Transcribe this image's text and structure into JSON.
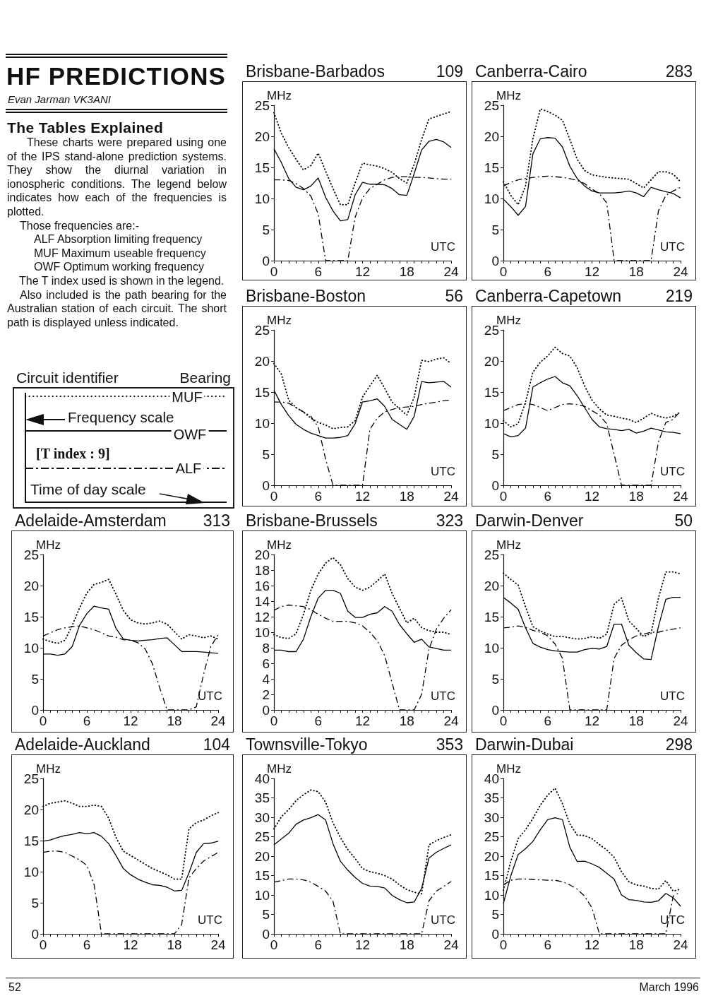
{
  "chart_data": [
    {
      "type": "other",
      "title": "HF PREDICTIONS",
      "subtitle": "Evan Jarman VK3ANI",
      "annotations": [
        "The Tables Explained",
        "These charts were prepared using one of the IPS stand-alone prediction systems. They show the diurnal variation in ionospheric conditions. The legend below indicates how each of the frequencies is plotted.",
        "Those frequencies are:-",
        "ALF Absorption limiting frequency",
        "MUF Maximum useable frequency",
        "OWF Optimum working frequency",
        "The T index used is shown in the legend.",
        "Also included is the path bearing for the Australian station of each circuit. The short path is displayed unless indicated."
      ]
    },
    {
      "type": "line",
      "title": "Brisbane-Barbados",
      "subtitle": "109",
      "xlabel": "UTC",
      "ylabel": "MHz",
      "x": [
        0,
        1,
        2,
        3,
        4,
        5,
        6,
        7,
        8,
        9,
        10,
        11,
        12,
        13,
        14,
        15,
        16,
        17,
        18,
        19,
        20,
        21,
        22,
        23,
        24
      ],
      "xlim": [
        0,
        24
      ],
      "xticks": [
        0,
        {
          "value": 1,
          "label": null
        },
        {
          "value": 2,
          "label": null
        },
        {
          "value": 3,
          "label": null
        },
        {
          "value": 4,
          "label": null
        },
        {
          "value": 5,
          "label": null
        },
        6,
        {
          "value": 7,
          "label": null
        },
        {
          "value": 8,
          "label": null
        },
        {
          "value": 9,
          "label": null
        },
        {
          "value": 10,
          "label": null
        },
        {
          "value": 11,
          "label": null
        },
        12,
        {
          "value": 13,
          "label": null
        },
        {
          "value": 14,
          "label": null
        },
        {
          "value": 15,
          "label": null
        },
        {
          "value": 16,
          "label": null
        },
        {
          "value": 17,
          "label": null
        },
        18,
        {
          "value": 19,
          "label": null
        },
        {
          "value": 20,
          "label": null
        },
        {
          "value": 21,
          "label": null
        },
        {
          "value": 22,
          "label": null
        },
        {
          "value": 23,
          "label": null
        },
        24
      ],
      "ylim": [
        0,
        25
      ],
      "yticks": [
        0,
        5,
        10,
        15,
        20,
        25
      ],
      "marker": "none",
      "series": [
        {
          "color": "#000000",
          "line_style": "dotted",
          "values": [
            23.8,
            20.5,
            18.2,
            16.3,
            14.6,
            15.3,
            17.3,
            14.4,
            11.6,
            9,
            9,
            12.5,
            15.7,
            15.4,
            15.2,
            14.8,
            14.2,
            13.2,
            12.5,
            15.5,
            19.5,
            22.8,
            23.2,
            23.6,
            24
          ]
        },
        {
          "color": "#000000",
          "line_style": "solid",
          "values": [
            18,
            15.8,
            13.2,
            11.8,
            11.4,
            12,
            13.3,
            10.2,
            8,
            6.4,
            6.6,
            10.6,
            12.6,
            12.3,
            12.3,
            12.2,
            11.6,
            10.6,
            10.5,
            14,
            17.8,
            19.2,
            19.5,
            19.1,
            18.2
          ]
        },
        {
          "color": "#000000",
          "line_style": "dashed",
          "values": [
            13,
            13,
            12.9,
            12.4,
            11.6,
            10.4,
            7.5,
            0,
            0,
            0,
            0,
            7,
            10.1,
            11.6,
            12.3,
            13,
            13.4,
            13.5,
            13.5,
            13.4,
            13.4,
            13.3,
            13.2,
            13.1,
            13.1
          ]
        }
      ]
    },
    {
      "type": "line",
      "title": "Canberra-Cairo",
      "subtitle": "283",
      "xlabel": "UTC",
      "ylabel": "MHz",
      "x": [
        0,
        1,
        2,
        3,
        4,
        5,
        6,
        7,
        8,
        9,
        10,
        11,
        12,
        13,
        14,
        15,
        16,
        17,
        18,
        19,
        20,
        21,
        22,
        23,
        24
      ],
      "xlim": [
        0,
        24
      ],
      "xticks": [
        0,
        {
          "value": 1,
          "label": null
        },
        {
          "value": 2,
          "label": null
        },
        {
          "value": 3,
          "label": null
        },
        {
          "value": 4,
          "label": null
        },
        {
          "value": 5,
          "label": null
        },
        6,
        {
          "value": 7,
          "label": null
        },
        {
          "value": 8,
          "label": null
        },
        {
          "value": 9,
          "label": null
        },
        {
          "value": 10,
          "label": null
        },
        {
          "value": 11,
          "label": null
        },
        12,
        {
          "value": 13,
          "label": null
        },
        {
          "value": 14,
          "label": null
        },
        {
          "value": 15,
          "label": null
        },
        {
          "value": 16,
          "label": null
        },
        {
          "value": 17,
          "label": null
        },
        18,
        {
          "value": 19,
          "label": null
        },
        {
          "value": 20,
          "label": null
        },
        {
          "value": 21,
          "label": null
        },
        {
          "value": 22,
          "label": null
        },
        {
          "value": 23,
          "label": null
        },
        24
      ],
      "ylim": [
        0,
        25
      ],
      "yticks": [
        0,
        5,
        10,
        15,
        20,
        25
      ],
      "marker": "none",
      "series": [
        {
          "color": "#000000",
          "line_style": "dotted",
          "values": [
            12.7,
            10.5,
            9,
            12,
            19.6,
            24.4,
            24,
            23.4,
            22.6,
            19.5,
            16.3,
            14.5,
            13.8,
            13.6,
            13.4,
            13.3,
            13.2,
            13.1,
            12.4,
            11.7,
            13,
            14.3,
            14.3,
            13.9,
            12.7
          ]
        },
        {
          "color": "#000000",
          "line_style": "solid",
          "values": [
            9.9,
            8.7,
            7.3,
            8.7,
            17.2,
            19.6,
            19.8,
            19.7,
            18.3,
            15.2,
            13.2,
            12,
            11.2,
            10.9,
            10.9,
            10.9,
            11,
            11.2,
            10.9,
            10.3,
            11.8,
            11.4,
            11.1,
            10.8,
            10.1
          ]
        },
        {
          "color": "#000000",
          "line_style": "dashed",
          "values": [
            12,
            12.6,
            13,
            13.2,
            13.4,
            13.5,
            13.6,
            13.5,
            13.4,
            13.2,
            12.9,
            12.4,
            11.5,
            10.8,
            9.3,
            0,
            0,
            0,
            0,
            0,
            0,
            8,
            10.5,
            11.2,
            11.8
          ]
        }
      ]
    },
    {
      "type": "line",
      "title": "Brisbane-Boston",
      "subtitle": "56",
      "xlabel": "UTC",
      "ylabel": "MHz",
      "x": [
        0,
        1,
        2,
        3,
        4,
        5,
        6,
        7,
        8,
        9,
        10,
        11,
        12,
        13,
        14,
        15,
        16,
        17,
        18,
        19,
        20,
        21,
        22,
        23,
        24
      ],
      "xlim": [
        0,
        24
      ],
      "xticks": [
        0,
        {
          "value": 1,
          "label": null
        },
        {
          "value": 2,
          "label": null
        },
        {
          "value": 3,
          "label": null
        },
        {
          "value": 4,
          "label": null
        },
        {
          "value": 5,
          "label": null
        },
        6,
        {
          "value": 7,
          "label": null
        },
        {
          "value": 8,
          "label": null
        },
        {
          "value": 9,
          "label": null
        },
        {
          "value": 10,
          "label": null
        },
        {
          "value": 11,
          "label": null
        },
        12,
        {
          "value": 13,
          "label": null
        },
        {
          "value": 14,
          "label": null
        },
        {
          "value": 15,
          "label": null
        },
        {
          "value": 16,
          "label": null
        },
        {
          "value": 17,
          "label": null
        },
        18,
        {
          "value": 19,
          "label": null
        },
        {
          "value": 20,
          "label": null
        },
        {
          "value": 21,
          "label": null
        },
        {
          "value": 22,
          "label": null
        },
        {
          "value": 23,
          "label": null
        },
        24
      ],
      "ylim": [
        0,
        25
      ],
      "yticks": [
        0,
        5,
        10,
        15,
        20,
        25
      ],
      "marker": "none",
      "series": [
        {
          "color": "#000000",
          "line_style": "dotted",
          "values": [
            19.6,
            17.9,
            13.7,
            12.5,
            11.8,
            10.8,
            10.1,
            9.7,
            9.1,
            9.3,
            9.4,
            10.4,
            14.2,
            16,
            17.7,
            15.6,
            13.4,
            12.3,
            11.3,
            14.2,
            20.1,
            19.9,
            20.3,
            20.5,
            19.6
          ]
        },
        {
          "color": "#000000",
          "line_style": "solid",
          "values": [
            15.3,
            13,
            11.2,
            9.8,
            9,
            8.4,
            8,
            7.6,
            7.6,
            7.7,
            8,
            9.9,
            13.4,
            13.6,
            13.9,
            12.7,
            10.6,
            9.8,
            9,
            11.1,
            16.7,
            16.5,
            16.6,
            16.7,
            15.8
          ]
        },
        {
          "color": "#000000",
          "line_style": "dashed",
          "values": [
            13.4,
            13.4,
            13.2,
            12.5,
            11.8,
            11.1,
            9.4,
            4.2,
            0,
            0,
            0,
            0,
            0,
            9,
            10.8,
            11.8,
            12.2,
            12.5,
            12.6,
            12.7,
            13,
            13.2,
            13.4,
            13.6,
            13.7
          ]
        }
      ]
    },
    {
      "type": "line",
      "title": "Canberra-Capetown",
      "subtitle": "219",
      "xlabel": "UTC",
      "ylabel": "MHz",
      "x": [
        0,
        1,
        2,
        3,
        4,
        5,
        6,
        7,
        8,
        9,
        10,
        11,
        12,
        13,
        14,
        15,
        16,
        17,
        18,
        19,
        20,
        21,
        22,
        23,
        24
      ],
      "xlim": [
        0,
        24
      ],
      "xticks": [
        0,
        {
          "value": 1,
          "label": null
        },
        {
          "value": 2,
          "label": null
        },
        {
          "value": 3,
          "label": null
        },
        {
          "value": 4,
          "label": null
        },
        {
          "value": 5,
          "label": null
        },
        6,
        {
          "value": 7,
          "label": null
        },
        {
          "value": 8,
          "label": null
        },
        {
          "value": 9,
          "label": null
        },
        {
          "value": 10,
          "label": null
        },
        {
          "value": 11,
          "label": null
        },
        12,
        {
          "value": 13,
          "label": null
        },
        {
          "value": 14,
          "label": null
        },
        {
          "value": 15,
          "label": null
        },
        {
          "value": 16,
          "label": null
        },
        {
          "value": 17,
          "label": null
        },
        18,
        {
          "value": 19,
          "label": null
        },
        {
          "value": 20,
          "label": null
        },
        {
          "value": 21,
          "label": null
        },
        {
          "value": 22,
          "label": null
        },
        {
          "value": 23,
          "label": null
        },
        24
      ],
      "ylim": [
        0,
        25
      ],
      "yticks": [
        0,
        5,
        10,
        15,
        20,
        25
      ],
      "marker": "none",
      "series": [
        {
          "color": "#000000",
          "line_style": "dotted",
          "values": [
            10.4,
            9.4,
            9.9,
            13.4,
            18.2,
            19.8,
            20.8,
            22.2,
            21.2,
            20.8,
            18.9,
            16,
            13.7,
            12.3,
            11.3,
            11.1,
            10.8,
            10.6,
            10.1,
            10.8,
            11.6,
            11.1,
            10.8,
            11.1,
            11.8
          ]
        },
        {
          "color": "#000000",
          "line_style": "solid",
          "values": [
            8.3,
            7.8,
            8,
            9.2,
            15.8,
            16.5,
            17.1,
            17.5,
            16.5,
            16,
            14.4,
            12.5,
            10.6,
            9.4,
            9.1,
            9,
            8.8,
            9,
            8.4,
            8.7,
            9.2,
            8.9,
            8.6,
            8.5,
            8.3
          ]
        },
        {
          "color": "#000000",
          "line_style": "dashed",
          "values": [
            12,
            12.5,
            13,
            13.1,
            13,
            12.5,
            12,
            12.5,
            13,
            13.1,
            13,
            12.7,
            12,
            11.3,
            9.9,
            5,
            0,
            0,
            0,
            0,
            0,
            7,
            10.1,
            10.6,
            12
          ]
        }
      ]
    },
    {
      "type": "other",
      "title": "Circuit identifier",
      "subtitle": "Bearing",
      "annotations": [
        "MUF",
        "Frequency scale",
        "OWF",
        "[T index : 9]",
        "ALF",
        "Time of day scale"
      ]
    },
    {
      "type": "line",
      "title": "Adelaide-Amsterdam",
      "subtitle": "313",
      "xlabel": "UTC",
      "ylabel": "MHz",
      "x": [
        0,
        1,
        2,
        3,
        4,
        5,
        6,
        7,
        8,
        9,
        10,
        11,
        12,
        13,
        14,
        15,
        16,
        17,
        18,
        19,
        20,
        21,
        22,
        23,
        24
      ],
      "xlim": [
        0,
        24
      ],
      "xticks": [
        0,
        {
          "value": 1,
          "label": null
        },
        {
          "value": 2,
          "label": null
        },
        {
          "value": 3,
          "label": null
        },
        {
          "value": 4,
          "label": null
        },
        {
          "value": 5,
          "label": null
        },
        6,
        {
          "value": 7,
          "label": null
        },
        {
          "value": 8,
          "label": null
        },
        {
          "value": 9,
          "label": null
        },
        {
          "value": 10,
          "label": null
        },
        {
          "value": 11,
          "label": null
        },
        12,
        {
          "value": 13,
          "label": null
        },
        {
          "value": 14,
          "label": null
        },
        {
          "value": 15,
          "label": null
        },
        {
          "value": 16,
          "label": null
        },
        {
          "value": 17,
          "label": null
        },
        18,
        {
          "value": 19,
          "label": null
        },
        {
          "value": 20,
          "label": null
        },
        {
          "value": 21,
          "label": null
        },
        {
          "value": 22,
          "label": null
        },
        {
          "value": 23,
          "label": null
        },
        24
      ],
      "ylim": [
        0,
        25
      ],
      "yticks": [
        0,
        5,
        10,
        15,
        20,
        25
      ],
      "marker": "none",
      "series": [
        {
          "color": "#000000",
          "line_style": "dotted",
          "values": [
            11.4,
            11,
            10.7,
            11.2,
            13.6,
            16.4,
            18.8,
            20.2,
            20.5,
            21,
            18.6,
            16,
            14.5,
            14,
            13.8,
            14,
            14.3,
            13.8,
            12.6,
            11.4,
            12.1,
            11.9,
            11.6,
            11.9,
            11.4
          ]
        },
        {
          "color": "#000000",
          "line_style": "solid",
          "values": [
            9,
            9,
            8.8,
            9,
            10.2,
            13.6,
            15.5,
            16.7,
            16.4,
            16.2,
            13.1,
            11.4,
            11.2,
            11.1,
            11.2,
            11.3,
            11.5,
            11.6,
            10.5,
            9.4,
            9.4,
            9.4,
            9.3,
            9.2,
            9.1
          ]
        },
        {
          "color": "#000000",
          "line_style": "dashed",
          "values": [
            11.9,
            12.4,
            12.9,
            13.2,
            13.4,
            13.5,
            13.2,
            12.9,
            12.4,
            11.9,
            11.7,
            11.3,
            11.2,
            10.8,
            9.8,
            7.4,
            3.5,
            0,
            0,
            0,
            0,
            0.5,
            5.7,
            10.2,
            12.1
          ]
        }
      ]
    },
    {
      "type": "line",
      "title": "Brisbane-Brussels",
      "subtitle": "323",
      "xlabel": "UTC",
      "ylabel": "MHz",
      "x": [
        0,
        1,
        2,
        3,
        4,
        5,
        6,
        7,
        8,
        9,
        10,
        11,
        12,
        13,
        14,
        15,
        16,
        17,
        18,
        19,
        20,
        21,
        22,
        23,
        24
      ],
      "xlim": [
        0,
        24
      ],
      "xticks": [
        0,
        {
          "value": 1,
          "label": null
        },
        {
          "value": 2,
          "label": null
        },
        {
          "value": 3,
          "label": null
        },
        {
          "value": 4,
          "label": null
        },
        {
          "value": 5,
          "label": null
        },
        6,
        {
          "value": 7,
          "label": null
        },
        {
          "value": 8,
          "label": null
        },
        {
          "value": 9,
          "label": null
        },
        {
          "value": 10,
          "label": null
        },
        {
          "value": 11,
          "label": null
        },
        12,
        {
          "value": 13,
          "label": null
        },
        {
          "value": 14,
          "label": null
        },
        {
          "value": 15,
          "label": null
        },
        {
          "value": 16,
          "label": null
        },
        {
          "value": 17,
          "label": null
        },
        18,
        {
          "value": 19,
          "label": null
        },
        {
          "value": 20,
          "label": null
        },
        {
          "value": 21,
          "label": null
        },
        {
          "value": 22,
          "label": null
        },
        {
          "value": 23,
          "label": null
        },
        24
      ],
      "ylim": [
        0,
        20
      ],
      "yticks": [
        0,
        2,
        4,
        6,
        8,
        10,
        12,
        14,
        16,
        18,
        20
      ],
      "marker": "none",
      "series": [
        {
          "color": "#000000",
          "line_style": "dotted",
          "values": [
            9.7,
            9.3,
            9.2,
            9.8,
            12.3,
            15.4,
            17.5,
            18.9,
            19.6,
            18.7,
            16.9,
            15.8,
            15.4,
            15.8,
            16.6,
            17.5,
            15,
            13.1,
            11.2,
            11.8,
            10.6,
            10.2,
            10,
            10,
            9.7
          ]
        },
        {
          "color": "#000000",
          "line_style": "solid",
          "values": [
            7.7,
            7.7,
            7.5,
            7.5,
            9.1,
            12,
            14.4,
            15.4,
            15.4,
            15,
            12.7,
            11.9,
            11.9,
            12.3,
            12.5,
            13.3,
            12.7,
            11,
            9.8,
            8.7,
            9.1,
            8.1,
            7.9,
            7.7,
            7.7
          ]
        },
        {
          "color": "#000000",
          "line_style": "dashed",
          "values": [
            12.8,
            13.3,
            13.5,
            13.4,
            13.3,
            12.9,
            12.3,
            11.8,
            11.4,
            11.4,
            11.4,
            11.2,
            10.8,
            10,
            8.9,
            7,
            3.5,
            0,
            0,
            0,
            2,
            7.8,
            10.4,
            11.8,
            12.9
          ]
        }
      ]
    },
    {
      "type": "line",
      "title": "Darwin-Denver",
      "subtitle": "50",
      "xlabel": "UTC",
      "ylabel": "MHz",
      "x": [
        0,
        1,
        2,
        3,
        4,
        5,
        6,
        7,
        8,
        9,
        10,
        11,
        12,
        13,
        14,
        15,
        16,
        17,
        18,
        19,
        20,
        21,
        22,
        23,
        24
      ],
      "xlim": [
        0,
        24
      ],
      "xticks": [
        0,
        {
          "value": 1,
          "label": null
        },
        {
          "value": 2,
          "label": null
        },
        {
          "value": 3,
          "label": null
        },
        {
          "value": 4,
          "label": null
        },
        {
          "value": 5,
          "label": null
        },
        6,
        {
          "value": 7,
          "label": null
        },
        {
          "value": 8,
          "label": null
        },
        {
          "value": 9,
          "label": null
        },
        {
          "value": 10,
          "label": null
        },
        {
          "value": 11,
          "label": null
        },
        12,
        {
          "value": 13,
          "label": null
        },
        {
          "value": 14,
          "label": null
        },
        {
          "value": 15,
          "label": null
        },
        {
          "value": 16,
          "label": null
        },
        {
          "value": 17,
          "label": null
        },
        18,
        {
          "value": 19,
          "label": null
        },
        {
          "value": 20,
          "label": null
        },
        {
          "value": 21,
          "label": null
        },
        {
          "value": 22,
          "label": null
        },
        {
          "value": 23,
          "label": null
        },
        24
      ],
      "ylim": [
        0,
        25
      ],
      "yticks": [
        0,
        5,
        10,
        15,
        20,
        25
      ],
      "marker": "none",
      "series": [
        {
          "color": "#000000",
          "line_style": "dotted",
          "values": [
            22,
            21,
            20.1,
            16.6,
            13.4,
            12.7,
            12.2,
            11.8,
            11.8,
            11.6,
            11.4,
            11.5,
            11.8,
            11.5,
            12.2,
            17,
            18,
            14.3,
            13.1,
            11.8,
            12.3,
            18,
            22.2,
            22.2,
            21.9
          ]
        },
        {
          "color": "#000000",
          "line_style": "solid",
          "values": [
            18.1,
            17.2,
            16.2,
            13.2,
            10.7,
            10.1,
            9.7,
            9.5,
            9.4,
            9.3,
            9.3,
            9.7,
            9.9,
            9.8,
            10.2,
            13.8,
            13.8,
            10.4,
            9.2,
            8.2,
            8.1,
            13.4,
            17.8,
            18.1,
            18.1
          ]
        },
        {
          "color": "#000000",
          "line_style": "dashed",
          "values": [
            13.2,
            13.3,
            13.5,
            13.3,
            12.8,
            12.5,
            11.9,
            10.6,
            8.3,
            0,
            0,
            0,
            0,
            0,
            0,
            8.3,
            10.4,
            11.3,
            11.9,
            12.2,
            12.5,
            12.5,
            12.8,
            13,
            13.2
          ]
        }
      ]
    },
    {
      "type": "line",
      "title": "Adelaide-Auckland",
      "subtitle": "104",
      "xlabel": "UTC",
      "ylabel": "MHz",
      "x": [
        0,
        1,
        2,
        3,
        4,
        5,
        6,
        7,
        8,
        9,
        10,
        11,
        12,
        13,
        14,
        15,
        16,
        17,
        18,
        19,
        20,
        21,
        22,
        23,
        24
      ],
      "xlim": [
        0,
        24
      ],
      "xticks": [
        0,
        {
          "value": 1,
          "label": null
        },
        {
          "value": 2,
          "label": null
        },
        {
          "value": 3,
          "label": null
        },
        {
          "value": 4,
          "label": null
        },
        {
          "value": 5,
          "label": null
        },
        6,
        {
          "value": 7,
          "label": null
        },
        {
          "value": 8,
          "label": null
        },
        {
          "value": 9,
          "label": null
        },
        {
          "value": 10,
          "label": null
        },
        {
          "value": 11,
          "label": null
        },
        12,
        {
          "value": 13,
          "label": null
        },
        {
          "value": 14,
          "label": null
        },
        {
          "value": 15,
          "label": null
        },
        {
          "value": 16,
          "label": null
        },
        {
          "value": 17,
          "label": null
        },
        18,
        {
          "value": 19,
          "label": null
        },
        {
          "value": 20,
          "label": null
        },
        {
          "value": 21,
          "label": null
        },
        {
          "value": 22,
          "label": null
        },
        {
          "value": 23,
          "label": null
        },
        24
      ],
      "ylim": [
        0,
        25
      ],
      "yticks": [
        0,
        5,
        10,
        15,
        20,
        25
      ],
      "marker": "none",
      "series": [
        {
          "color": "#000000",
          "line_style": "dotted",
          "values": [
            20.5,
            21,
            21.2,
            21.4,
            21,
            20.5,
            20.5,
            20.7,
            20.5,
            18.6,
            15.5,
            13.3,
            12.6,
            11.9,
            11.2,
            10.5,
            10,
            9.5,
            8.8,
            8.8,
            16.9,
            17.9,
            18.3,
            19,
            19.5
          ]
        },
        {
          "color": "#000000",
          "line_style": "solid",
          "values": [
            14.9,
            15.1,
            15.5,
            15.8,
            16,
            16.3,
            16.1,
            16.3,
            15.7,
            14.5,
            12.6,
            10.5,
            9.5,
            8.8,
            8.3,
            7.9,
            7.8,
            7.5,
            6.9,
            7,
            9.8,
            13.1,
            14.5,
            14.6,
            14.9
          ]
        },
        {
          "color": "#000000",
          "line_style": "dashed",
          "values": [
            13.1,
            13.3,
            13.3,
            13.1,
            12.5,
            11.9,
            11,
            7.9,
            0,
            0,
            0,
            0,
            0,
            0,
            0,
            0,
            0,
            0,
            0,
            1.5,
            9,
            10.5,
            11.7,
            12.4,
            13.1
          ]
        }
      ]
    },
    {
      "type": "line",
      "title": "Townsville-Tokyo",
      "subtitle": "353",
      "xlabel": "UTC",
      "ylabel": "MHz",
      "x": [
        0,
        1,
        2,
        3,
        4,
        5,
        6,
        7,
        8,
        9,
        10,
        11,
        12,
        13,
        14,
        15,
        16,
        17,
        18,
        19,
        20,
        21,
        22,
        23,
        24
      ],
      "xlim": [
        0,
        24
      ],
      "xticks": [
        0,
        {
          "value": 1,
          "label": null
        },
        {
          "value": 2,
          "label": null
        },
        {
          "value": 3,
          "label": null
        },
        {
          "value": 4,
          "label": null
        },
        {
          "value": 5,
          "label": null
        },
        6,
        {
          "value": 7,
          "label": null
        },
        {
          "value": 8,
          "label": null
        },
        {
          "value": 9,
          "label": null
        },
        {
          "value": 10,
          "label": null
        },
        {
          "value": 11,
          "label": null
        },
        12,
        {
          "value": 13,
          "label": null
        },
        {
          "value": 14,
          "label": null
        },
        {
          "value": 15,
          "label": null
        },
        {
          "value": 16,
          "label": null
        },
        {
          "value": 17,
          "label": null
        },
        18,
        {
          "value": 19,
          "label": null
        },
        {
          "value": 20,
          "label": null
        },
        {
          "value": 21,
          "label": null
        },
        {
          "value": 22,
          "label": null
        },
        {
          "value": 23,
          "label": null
        },
        24
      ],
      "ylim": [
        0,
        40
      ],
      "yticks": [
        0,
        5,
        10,
        15,
        20,
        25,
        30,
        35,
        40
      ],
      "marker": "none",
      "series": [
        {
          "color": "#000000",
          "line_style": "dotted",
          "values": [
            27,
            30.1,
            32,
            34.3,
            35.8,
            37,
            36.6,
            33.9,
            28.6,
            24.8,
            21.7,
            19.4,
            16.8,
            16,
            15.6,
            15,
            14.1,
            12.6,
            11.4,
            10.7,
            10.3,
            22.9,
            24,
            24.8,
            25.5
          ]
        },
        {
          "color": "#000000",
          "line_style": "solid",
          "values": [
            22.9,
            24.4,
            25.9,
            28.2,
            29.3,
            29.9,
            30.7,
            29.3,
            23.2,
            18.7,
            16.4,
            14.5,
            13,
            12.3,
            12.2,
            11.8,
            9.9,
            8.8,
            8,
            8.2,
            11.7,
            19.5,
            21,
            22,
            22.9
          ]
        },
        {
          "color": "#000000",
          "line_style": "dashed",
          "values": [
            13.3,
            13.7,
            14.1,
            14.1,
            13.9,
            13.3,
            12.2,
            11,
            8.4,
            0,
            0,
            0,
            0,
            0,
            0,
            0,
            0,
            0,
            0,
            0,
            0,
            8.5,
            11,
            12.2,
            13.5
          ]
        }
      ]
    },
    {
      "type": "line",
      "title": "Darwin-Dubai",
      "subtitle": "298",
      "xlabel": "UTC",
      "ylabel": "MHz",
      "x": [
        0,
        1,
        2,
        3,
        4,
        5,
        6,
        7,
        8,
        9,
        10,
        11,
        12,
        13,
        14,
        15,
        16,
        17,
        18,
        19,
        20,
        21,
        22,
        23,
        24
      ],
      "xlim": [
        0,
        24
      ],
      "xticks": [
        0,
        {
          "value": 1,
          "label": null
        },
        {
          "value": 2,
          "label": null
        },
        {
          "value": 3,
          "label": null
        },
        {
          "value": 4,
          "label": null
        },
        {
          "value": 5,
          "label": null
        },
        6,
        {
          "value": 7,
          "label": null
        },
        {
          "value": 8,
          "label": null
        },
        {
          "value": 9,
          "label": null
        },
        {
          "value": 10,
          "label": null
        },
        {
          "value": 11,
          "label": null
        },
        12,
        {
          "value": 13,
          "label": null
        },
        {
          "value": 14,
          "label": null
        },
        {
          "value": 15,
          "label": null
        },
        {
          "value": 16,
          "label": null
        },
        {
          "value": 17,
          "label": null
        },
        18,
        {
          "value": 19,
          "label": null
        },
        {
          "value": 20,
          "label": null
        },
        {
          "value": 21,
          "label": null
        },
        {
          "value": 22,
          "label": null
        },
        {
          "value": 23,
          "label": null
        },
        24
      ],
      "ylim": [
        0,
        40
      ],
      "yticks": [
        0,
        5,
        10,
        15,
        20,
        25,
        30,
        35,
        40
      ],
      "marker": "none",
      "series": [
        {
          "color": "#000000",
          "line_style": "dotted",
          "values": [
            11.2,
            18.6,
            24.5,
            26.8,
            29.7,
            33.1,
            35.7,
            37.5,
            33.5,
            28.3,
            25.4,
            25.3,
            24.5,
            23,
            21.6,
            19.7,
            16,
            13.4,
            12.6,
            12.3,
            11.7,
            11.5,
            13.7,
            11,
            11.5
          ]
        },
        {
          "color": "#000000",
          "line_style": "solid",
          "values": [
            7.8,
            14.9,
            20.4,
            21.9,
            23.8,
            26.8,
            29.4,
            29.9,
            29.4,
            22.3,
            18.6,
            18.7,
            18,
            17.1,
            15.6,
            14.1,
            10,
            8.8,
            8.6,
            8.2,
            8.1,
            8.5,
            10.4,
            9.3,
            7.1
          ]
        },
        {
          "color": "#000000",
          "line_style": "dashed",
          "values": [
            12.6,
            13.8,
            14.1,
            14.1,
            14,
            13.9,
            13.8,
            13.8,
            13.4,
            12.6,
            11.5,
            9.7,
            6.7,
            0,
            0,
            0,
            0,
            0,
            0,
            0,
            0,
            0,
            0,
            9.7,
            10.8
          ]
        }
      ]
    },
    {
      "type": "other",
      "annotations": [
        "52",
        "March 1996"
      ]
    }
  ]
}
